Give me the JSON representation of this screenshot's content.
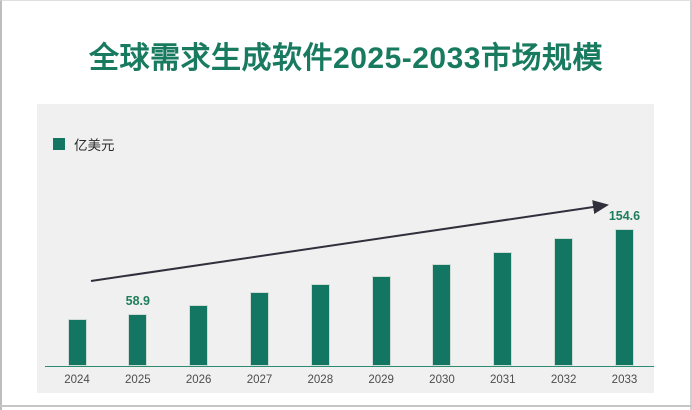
{
  "title": "全球需求生成软件2025-2033市场规模",
  "legend": {
    "label": "亿美元"
  },
  "colors": {
    "bar": "#137663",
    "title": "#187a5f",
    "data_label": "#1e7e5c",
    "axis_line": "#2e8c72",
    "arrow": "#30303c",
    "panel_bg": "#f0f0f0",
    "tick_label": "#4d4d4d"
  },
  "chart_data": {
    "type": "bar",
    "title": "全球需求生成软件2025-2033市场规模",
    "series_name": "亿美元",
    "categories": [
      "2024",
      "2025",
      "2026",
      "2027",
      "2028",
      "2029",
      "2030",
      "2031",
      "2032",
      "2033"
    ],
    "values": [
      53.5,
      58.9,
      69.0,
      83.0,
      92.0,
      102.0,
      115.0,
      129.0,
      144.5,
      154.6
    ],
    "shown_data_labels": {
      "2025": "58.9",
      "2033": "154.6"
    },
    "xlabel": "",
    "ylabel": "亿美元",
    "ylim": [
      0,
      165
    ],
    "y_axis_visible": false,
    "gridlines": false,
    "legend_position": "top-left",
    "annotations": [
      "upward trend arrow from 2024 to 2033"
    ]
  }
}
